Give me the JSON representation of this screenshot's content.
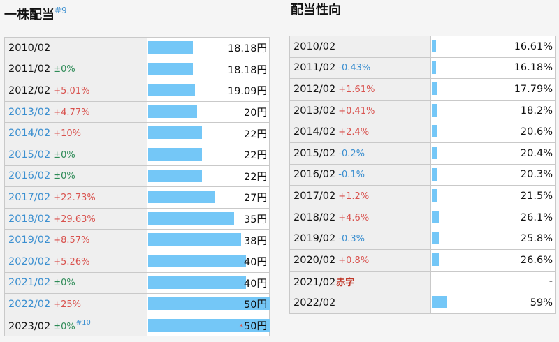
{
  "left": {
    "title": "一株配当",
    "title_note": "#9",
    "unit": "円",
    "rows": [
      {
        "year": "2010/02",
        "change": "",
        "change_type": "",
        "value": "18.18円",
        "amount": 18.18,
        "link": false
      },
      {
        "year": "2011/02",
        "change": "±0%",
        "change_type": "flat",
        "value": "18.18円",
        "amount": 18.18,
        "link": false
      },
      {
        "year": "2012/02",
        "change": "+5.01%",
        "change_type": "up",
        "value": "19.09円",
        "amount": 19.09,
        "link": false
      },
      {
        "year": "2013/02",
        "change": "+4.77%",
        "change_type": "up",
        "value": "20円",
        "amount": 20,
        "link": true
      },
      {
        "year": "2014/02",
        "change": "+10%",
        "change_type": "up",
        "value": "22円",
        "amount": 22,
        "link": true
      },
      {
        "year": "2015/02",
        "change": "±0%",
        "change_type": "flat",
        "value": "22円",
        "amount": 22,
        "link": true
      },
      {
        "year": "2016/02",
        "change": "±0%",
        "change_type": "flat",
        "value": "22円",
        "amount": 22,
        "link": true
      },
      {
        "year": "2017/02",
        "change": "+22.73%",
        "change_type": "up",
        "value": "27円",
        "amount": 27,
        "link": true
      },
      {
        "year": "2018/02",
        "change": "+29.63%",
        "change_type": "up",
        "value": "35円",
        "amount": 35,
        "link": true
      },
      {
        "year": "2019/02",
        "change": "+8.57%",
        "change_type": "up",
        "value": "38円",
        "amount": 38,
        "link": true
      },
      {
        "year": "2020/02",
        "change": "+5.26%",
        "change_type": "up",
        "value": "40円",
        "amount": 40,
        "link": true
      },
      {
        "year": "2021/02",
        "change": "±0%",
        "change_type": "flat",
        "value": "40円",
        "amount": 40,
        "link": true
      },
      {
        "year": "2022/02",
        "change": "+25%",
        "change_type": "up",
        "value": "50円",
        "amount": 50,
        "link": true
      },
      {
        "year": "2023/02",
        "change": "±0%",
        "change_type": "flat",
        "value": "50円",
        "amount": 50,
        "link": false,
        "note": "#10",
        "estimate_mark": "*"
      }
    ]
  },
  "right": {
    "title": "配当性向",
    "rows": [
      {
        "year": "2010/02",
        "change": "",
        "change_type": "",
        "value": "16.61%",
        "ratio": 16.61
      },
      {
        "year": "2011/02",
        "change": "-0.43%",
        "change_type": "down",
        "value": "16.18%",
        "ratio": 16.18
      },
      {
        "year": "2012/02",
        "change": "+1.61%",
        "change_type": "up",
        "value": "17.79%",
        "ratio": 17.79
      },
      {
        "year": "2013/02",
        "change": "+0.41%",
        "change_type": "up",
        "value": "18.2%",
        "ratio": 18.2
      },
      {
        "year": "2014/02",
        "change": "+2.4%",
        "change_type": "up",
        "value": "20.6%",
        "ratio": 20.6
      },
      {
        "year": "2015/02",
        "change": "-0.2%",
        "change_type": "down",
        "value": "20.4%",
        "ratio": 20.4
      },
      {
        "year": "2016/02",
        "change": "-0.1%",
        "change_type": "down",
        "value": "20.3%",
        "ratio": 20.3
      },
      {
        "year": "2017/02",
        "change": "+1.2%",
        "change_type": "up",
        "value": "21.5%",
        "ratio": 21.5
      },
      {
        "year": "2018/02",
        "change": "+4.6%",
        "change_type": "up",
        "value": "26.1%",
        "ratio": 26.1
      },
      {
        "year": "2019/02",
        "change": "-0.3%",
        "change_type": "down",
        "value": "25.8%",
        "ratio": 25.8
      },
      {
        "year": "2020/02",
        "change": "+0.8%",
        "change_type": "up",
        "value": "26.6%",
        "ratio": 26.6
      },
      {
        "year": "2021/02",
        "change": "赤字",
        "change_type": "red",
        "value": "-",
        "ratio": 0
      },
      {
        "year": "2022/02",
        "change": "",
        "change_type": "",
        "value": "59%",
        "ratio": 59
      }
    ]
  },
  "colors": {
    "bar": "#74c7f7",
    "up": "#d9534f",
    "flat": "#2e8b57",
    "down": "#3b8fd0",
    "red": "#c0392b"
  }
}
